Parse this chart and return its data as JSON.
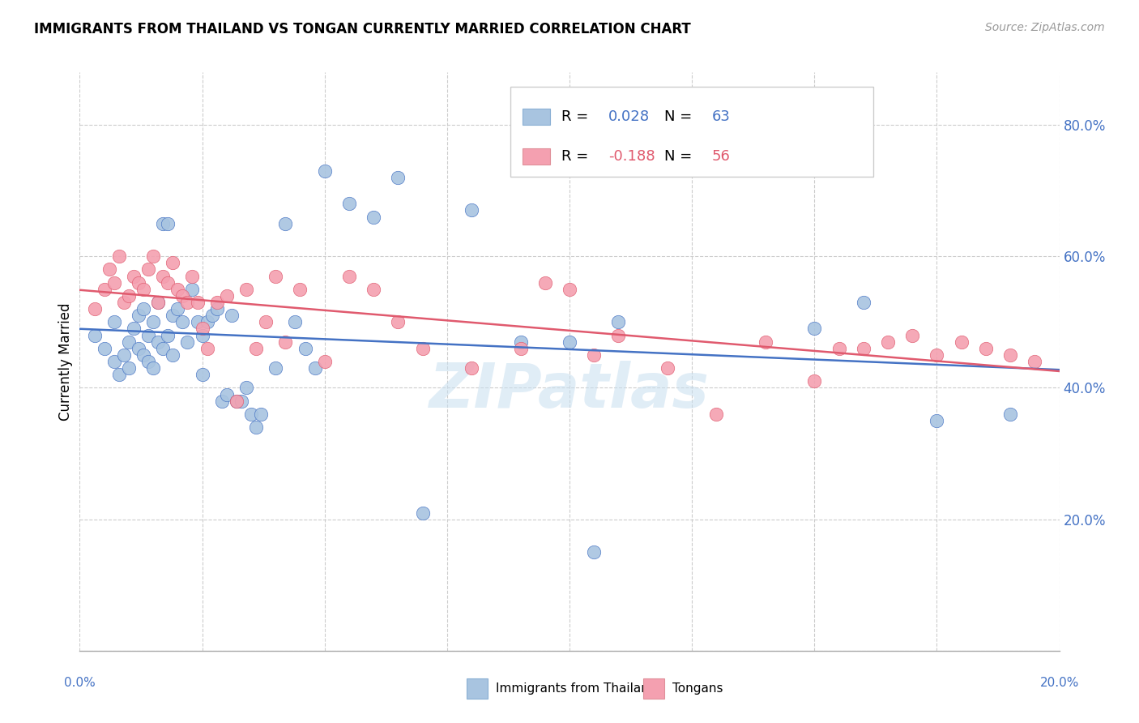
{
  "title": "IMMIGRANTS FROM THAILAND VS TONGAN CURRENTLY MARRIED CORRELATION CHART",
  "source": "Source: ZipAtlas.com",
  "ylabel": "Currently Married",
  "yticks": [
    0.0,
    0.2,
    0.4,
    0.6,
    0.8
  ],
  "xrange": [
    0.0,
    0.2
  ],
  "yrange": [
    0.0,
    0.88
  ],
  "legend1_R": "0.028",
  "legend1_N": "63",
  "legend2_R": "-0.188",
  "legend2_N": "56",
  "color_blue": "#a8c4e0",
  "color_pink": "#f4a0b0",
  "trendline_blue": "#4472c4",
  "trendline_pink": "#e05a6e",
  "text_blue": "#4472c4",
  "text_pink": "#e05a6e",
  "legend_label1": "Immigrants from Thailand",
  "legend_label2": "Tongans",
  "watermark": "ZIPatlas",
  "blue_points_x": [
    0.003,
    0.005,
    0.007,
    0.007,
    0.008,
    0.009,
    0.01,
    0.01,
    0.011,
    0.012,
    0.012,
    0.013,
    0.013,
    0.014,
    0.014,
    0.015,
    0.015,
    0.016,
    0.016,
    0.017,
    0.017,
    0.018,
    0.018,
    0.019,
    0.019,
    0.02,
    0.021,
    0.022,
    0.023,
    0.024,
    0.025,
    0.025,
    0.026,
    0.027,
    0.028,
    0.029,
    0.03,
    0.031,
    0.032,
    0.033,
    0.034,
    0.035,
    0.036,
    0.037,
    0.04,
    0.042,
    0.044,
    0.046,
    0.048,
    0.05,
    0.055,
    0.06,
    0.065,
    0.07,
    0.08,
    0.09,
    0.1,
    0.105,
    0.11,
    0.15,
    0.16,
    0.175,
    0.19
  ],
  "blue_points_y": [
    0.48,
    0.46,
    0.44,
    0.5,
    0.42,
    0.45,
    0.47,
    0.43,
    0.49,
    0.46,
    0.51,
    0.45,
    0.52,
    0.44,
    0.48,
    0.5,
    0.43,
    0.47,
    0.53,
    0.46,
    0.65,
    0.48,
    0.65,
    0.51,
    0.45,
    0.52,
    0.5,
    0.47,
    0.55,
    0.5,
    0.48,
    0.42,
    0.5,
    0.51,
    0.52,
    0.38,
    0.39,
    0.51,
    0.38,
    0.38,
    0.4,
    0.36,
    0.34,
    0.36,
    0.43,
    0.65,
    0.5,
    0.46,
    0.43,
    0.73,
    0.68,
    0.66,
    0.72,
    0.21,
    0.67,
    0.47,
    0.47,
    0.15,
    0.5,
    0.49,
    0.53,
    0.35,
    0.36
  ],
  "pink_points_x": [
    0.003,
    0.005,
    0.006,
    0.007,
    0.008,
    0.009,
    0.01,
    0.011,
    0.012,
    0.013,
    0.014,
    0.015,
    0.016,
    0.017,
    0.018,
    0.019,
    0.02,
    0.021,
    0.022,
    0.023,
    0.024,
    0.025,
    0.026,
    0.028,
    0.03,
    0.032,
    0.034,
    0.036,
    0.038,
    0.04,
    0.042,
    0.045,
    0.05,
    0.055,
    0.06,
    0.065,
    0.07,
    0.08,
    0.09,
    0.095,
    0.1,
    0.105,
    0.11,
    0.12,
    0.13,
    0.14,
    0.15,
    0.155,
    0.16,
    0.165,
    0.17,
    0.175,
    0.18,
    0.185,
    0.19,
    0.195
  ],
  "pink_points_y": [
    0.52,
    0.55,
    0.58,
    0.56,
    0.6,
    0.53,
    0.54,
    0.57,
    0.56,
    0.55,
    0.58,
    0.6,
    0.53,
    0.57,
    0.56,
    0.59,
    0.55,
    0.54,
    0.53,
    0.57,
    0.53,
    0.49,
    0.46,
    0.53,
    0.54,
    0.38,
    0.55,
    0.46,
    0.5,
    0.57,
    0.47,
    0.55,
    0.44,
    0.57,
    0.55,
    0.5,
    0.46,
    0.43,
    0.46,
    0.56,
    0.55,
    0.45,
    0.48,
    0.43,
    0.36,
    0.47,
    0.41,
    0.46,
    0.46,
    0.47,
    0.48,
    0.45,
    0.47,
    0.46,
    0.45,
    0.44
  ]
}
